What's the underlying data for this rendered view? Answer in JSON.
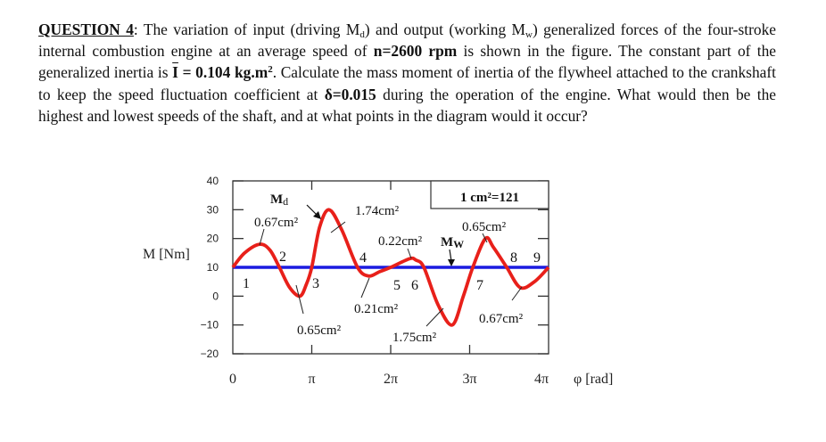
{
  "question": {
    "title": "QUESTION 4",
    "parts": [
      {
        "t": "text",
        "v": ": The variation of input (driving M"
      },
      {
        "t": "sub",
        "v": "d"
      },
      {
        "t": "text",
        "v": ") and output (working M"
      },
      {
        "t": "sub",
        "v": "w"
      },
      {
        "t": "text",
        "v": ") generalized forces of the four-stroke internal combustion engine at an average speed of "
      },
      {
        "t": "bold",
        "v": "n=2600 rpm"
      },
      {
        "t": "text",
        "v": " is shown in the figure. The constant part of the generalized inertia is "
      },
      {
        "t": "ibar",
        "v": "I"
      },
      {
        "t": "bold",
        "v": " = 0.104 kg.m"
      },
      {
        "t": "supbold",
        "v": "2"
      },
      {
        "t": "text",
        "v": ". Calculate the mass moment of inertia of the flywheel attached to the crankshaft to keep the speed fluctuation coefficient at "
      },
      {
        "t": "bold",
        "v": "δ=0.015"
      },
      {
        "t": "text",
        "v": " during the operation of the engine. What would then be the highest and lowest speeds of the shaft, and at what points in the diagram would it occur?"
      }
    ]
  },
  "chart_data": {
    "type": "line",
    "title": "",
    "xlabel": "φ [rad]",
    "ylabel": "M [Nm]",
    "xlim_pi": [
      0,
      4
    ],
    "ylim": [
      -20,
      40
    ],
    "x_ticks": [
      {
        "value_pi": 0,
        "label": "0"
      },
      {
        "value_pi": 1,
        "label": "π"
      },
      {
        "value_pi": 2,
        "label": "2π"
      },
      {
        "value_pi": 3,
        "label": "3π"
      },
      {
        "value_pi": 4,
        "label": "4π"
      }
    ],
    "y_ticks": [
      40,
      30,
      20,
      10,
      0,
      -10,
      -20
    ],
    "scale_box": "1 cm²=121",
    "colors": {
      "driving": "#e8201a",
      "working": "#1c1ce0",
      "axis": "#333333"
    },
    "series": [
      {
        "name": "Md",
        "label": "Md",
        "x_pi": [
          0,
          0.15,
          0.34,
          0.47,
          0.59,
          0.72,
          0.85,
          0.93,
          1.0,
          1.1,
          1.22,
          1.38,
          1.58,
          1.72,
          1.86,
          2.0,
          2.24,
          2.32,
          2.42,
          2.6,
          2.78,
          2.92,
          3.04,
          3.2,
          3.3,
          3.47,
          3.64,
          3.82,
          4.0
        ],
        "y": [
          10,
          15,
          18,
          16,
          10,
          3,
          0,
          4,
          10,
          24,
          30,
          23,
          10,
          7,
          8.5,
          10,
          13,
          12.5,
          10,
          -3,
          -10,
          0,
          10,
          20,
          17,
          10,
          3,
          5,
          10
        ]
      },
      {
        "name": "Mw",
        "label": "Mw",
        "x_pi": [
          0,
          4
        ],
        "y": [
          10,
          10
        ]
      }
    ],
    "points": [
      {
        "label": "1",
        "x_pi": 0.0
      },
      {
        "label": "2",
        "x_pi": 0.59
      },
      {
        "label": "3",
        "x_pi": 1.0
      },
      {
        "label": "4",
        "x_pi": 1.58
      },
      {
        "label": "5",
        "x_pi": 1.9
      },
      {
        "label": "6",
        "x_pi": 2.42
      },
      {
        "label": "7",
        "x_pi": 3.04
      },
      {
        "label": "8",
        "x_pi": 3.47
      },
      {
        "label": "9",
        "x_pi": 4.0
      }
    ],
    "area_annotations": [
      {
        "label": "0.67cm²",
        "x_pi": 0.34,
        "sign": "+"
      },
      {
        "label": "0.65cm²",
        "x_pi": 0.85,
        "sign": "-"
      },
      {
        "label": "1.74cm²",
        "x_pi": 1.3,
        "sign": "+"
      },
      {
        "label": "0.21cm²",
        "x_pi": 1.72,
        "sign": "-"
      },
      {
        "label": "0.22cm²",
        "x_pi": 2.24,
        "sign": "+"
      },
      {
        "label": "1.75cm²",
        "x_pi": 2.78,
        "sign": "-"
      },
      {
        "label": "0.65cm²",
        "x_pi": 3.2,
        "sign": "+"
      },
      {
        "label": "0.67cm²",
        "x_pi": 3.64,
        "sign": "-"
      }
    ]
  }
}
